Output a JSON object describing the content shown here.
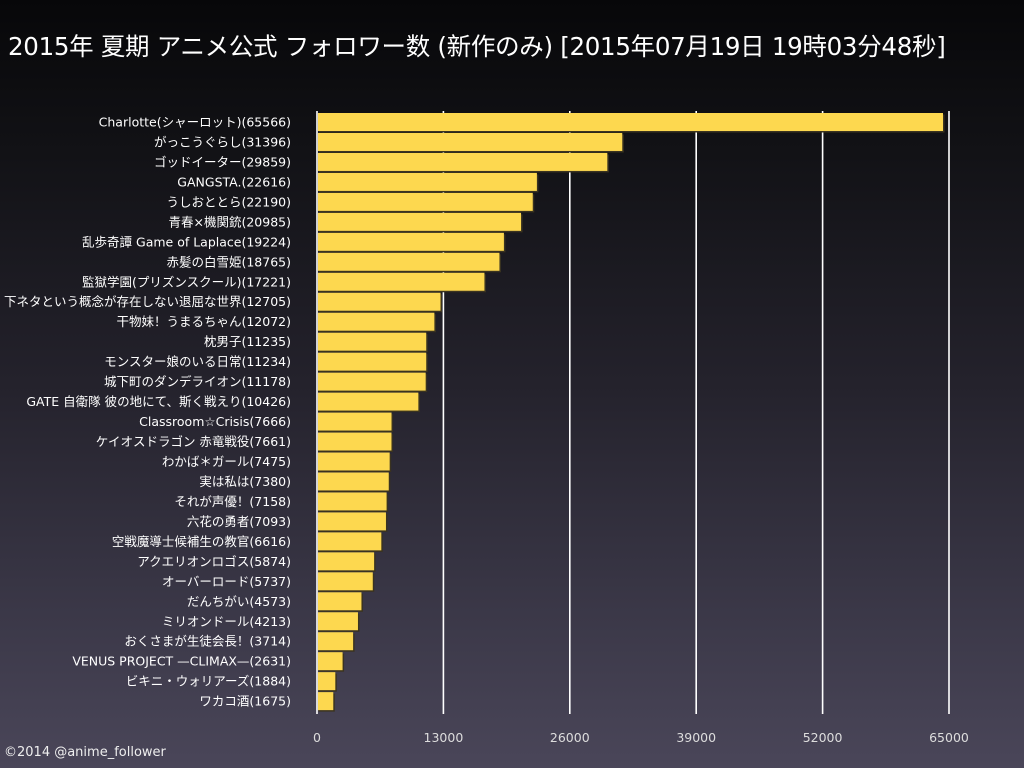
{
  "chart_data": {
    "type": "bar",
    "orientation": "horizontal",
    "title": "2015年 夏期 アニメ公式 フォロワー数 (新作のみ) [2015年07月19日 19時03分48秒]",
    "categories": [
      "Charlotte(シャーロット)(65566)",
      "がっこうぐらし(31396)",
      "ゴッドイーター(29859)",
      "GANGSTA.(22616)",
      "うしおととら(22190)",
      "青春×機関銃(20985)",
      "乱歩奇譚 Game of Laplace(19224)",
      "赤髪の白雪姫(18765)",
      "監獄学園(プリズンスクール)(17221)",
      "下ネタという概念が存在しない退屈な世界(12705)",
      "干物妹！うまるちゃん(12072)",
      "枕男子(11235)",
      "モンスター娘のいる日常(11234)",
      "城下町のダンデライオン(11178)",
      "GATE 自衛隊 彼の地にて、斯く戦えり(10426)",
      "Classroom☆Crisis(7666)",
      "ケイオスドラゴン 赤竜戦役(7661)",
      "わかば＊ガール(7475)",
      "実は私は(7380)",
      "それが声優！(7158)",
      "六花の勇者(7093)",
      "空戦魔導士候補生の教官(6616)",
      "アクエリオンロゴス(5874)",
      "オーバーロード(5737)",
      "だんちがい(4573)",
      "ミリオンドール(4213)",
      "おくさまが生徒会長！(3714)",
      "VENUS PROJECT —CLIMAX—(2631)",
      "ビキニ・ウォリアーズ(1884)",
      "ワカコ酒(1675)"
    ],
    "values": [
      65566,
      31396,
      29859,
      22616,
      22190,
      20985,
      19224,
      18765,
      17221,
      12705,
      12072,
      11235,
      11234,
      11178,
      10426,
      7666,
      7661,
      7475,
      7380,
      7158,
      7093,
      6616,
      5874,
      5737,
      4573,
      4213,
      3714,
      2631,
      1884,
      1675
    ],
    "xlim": [
      0,
      65000
    ],
    "xticks": [
      "0",
      "13000",
      "26000",
      "39000",
      "52000",
      "65000"
    ],
    "xtick_values": [
      0,
      13000,
      26000,
      39000,
      52000,
      65000
    ],
    "xlabel": "",
    "ylabel": "",
    "grid": true,
    "legend": "none",
    "bar_color": "#fdd84f",
    "grid_color": "#ffffff"
  },
  "footer": {
    "copyright": "©2014 @anime_follower"
  }
}
